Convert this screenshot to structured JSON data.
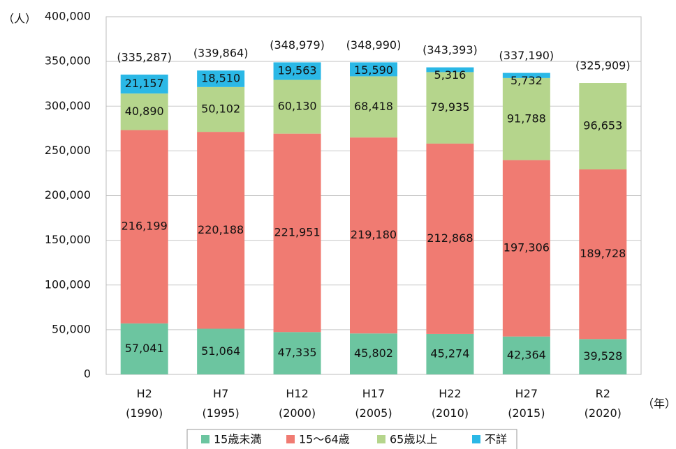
{
  "chart_data": {
    "type": "stacked_bar",
    "y_axis_label": "（人）",
    "x_axis_label": "（年）",
    "categories": [
      "H2\n(1990)",
      "H7\n(1995)",
      "H12\n(2000)",
      "H17\n(2005)",
      "H22\n(2010)",
      "H27\n(2015)",
      "R2\n(2020)"
    ],
    "series": [
      {
        "name": "15歳未満",
        "color": "#6cc5a0",
        "values": [
          57041,
          51064,
          47335,
          45802,
          45274,
          42364,
          39528
        ],
        "value_labels": [
          "57,041",
          "51,064",
          "47,335",
          "45,802",
          "45,274",
          "42,364",
          "39,528"
        ]
      },
      {
        "name": "15～64歳",
        "color": "#f07b72",
        "values": [
          216199,
          220188,
          221951,
          219180,
          212868,
          197306,
          189728
        ],
        "value_labels": [
          "216,199",
          "220,188",
          "221,951",
          "219,180",
          "212,868",
          "197,306",
          "189,728"
        ]
      },
      {
        "name": "65歳以上",
        "color": "#b5d58c",
        "values": [
          40890,
          50102,
          60130,
          68418,
          79935,
          91788,
          96653
        ],
        "value_labels": [
          "40,890",
          "50,102",
          "60,130",
          "68,418",
          "79,935",
          "91,788",
          "96,653"
        ]
      },
      {
        "name": "不詳",
        "color": "#2bb8e6",
        "values": [
          21157,
          18510,
          19563,
          15590,
          5316,
          5732,
          null
        ],
        "value_labels": [
          "21,157",
          "18,510",
          "19,563",
          "15,590",
          "5,316",
          "5,732",
          null
        ]
      }
    ],
    "totals": {
      "values": [
        335287,
        339864,
        348979,
        348990,
        343393,
        337190,
        325909
      ],
      "value_labels": [
        "(335,287)",
        "(339,864)",
        "(348,979)",
        "(348,990)",
        "(343,393)",
        "(337,190)",
        "(325,909)"
      ]
    },
    "ylim": [
      0,
      400000
    ],
    "yticks": [
      0,
      {
        "value": 50000,
        "label": "50,000"
      },
      {
        "value": 100000,
        "label": "100,000"
      },
      {
        "value": 150000,
        "label": "150,000"
      },
      {
        "value": 200000,
        "label": "200,000"
      },
      {
        "value": 250000,
        "label": "250,000"
      },
      {
        "value": 300000,
        "label": "300,000"
      },
      {
        "value": 350000,
        "label": "350,000"
      },
      {
        "value": 400000,
        "label": "400,000"
      }
    ],
    "grid": true,
    "legend": "bottom"
  }
}
